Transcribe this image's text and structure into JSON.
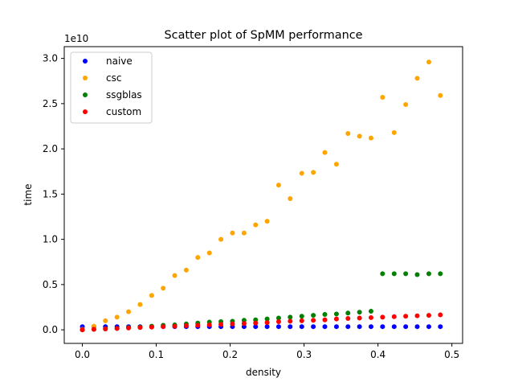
{
  "chart_data": {
    "type": "scatter",
    "title": "Scatter plot of SpMM performance",
    "xlabel": "density",
    "ylabel": "time",
    "y_offset_label": "1e10",
    "y_scale": 10000000000,
    "xlim": [
      -0.0245,
      0.5145
    ],
    "ylim": [
      -1.5,
      31.3
    ],
    "xticks": [
      0.0,
      0.1,
      0.2,
      0.3,
      0.4,
      0.5
    ],
    "xtick_labels": [
      "0.0",
      "0.1",
      "0.2",
      "0.3",
      "0.4",
      "0.5"
    ],
    "yticks": [
      0.0,
      5.0,
      10.0,
      15.0,
      20.0,
      25.0,
      30.0
    ],
    "ytick_labels": [
      "0.0",
      "0.5",
      "1.0",
      "1.5",
      "2.0",
      "2.5",
      "3.0"
    ],
    "legend_position": "upper-left",
    "grid": false,
    "x": [
      0.0,
      0.0156,
      0.0312,
      0.0469,
      0.0625,
      0.0781,
      0.0938,
      0.1094,
      0.125,
      0.1406,
      0.1562,
      0.1719,
      0.1875,
      0.2031,
      0.2188,
      0.2344,
      0.25,
      0.2656,
      0.2812,
      0.2969,
      0.3125,
      0.3281,
      0.3438,
      0.3594,
      0.375,
      0.3906,
      0.4062,
      0.4219,
      0.4375,
      0.4531,
      0.4688,
      0.4844
    ],
    "series": [
      {
        "name": "naive",
        "color": "#0000ff",
        "values": [
          0.35,
          0.35,
          0.35,
          0.35,
          0.35,
          0.35,
          0.35,
          0.35,
          0.35,
          0.35,
          0.35,
          0.35,
          0.35,
          0.35,
          0.35,
          0.35,
          0.35,
          0.35,
          0.35,
          0.35,
          0.35,
          0.35,
          0.35,
          0.35,
          0.35,
          0.35,
          0.35,
          0.35,
          0.35,
          0.35,
          0.35,
          0.35
        ]
      },
      {
        "name": "csc",
        "color": "#ffa500",
        "values": [
          0.05,
          0.4,
          1.0,
          1.4,
          2.0,
          2.8,
          3.8,
          4.6,
          6.0,
          6.6,
          8.0,
          8.5,
          10.0,
          10.7,
          10.7,
          11.6,
          12.0,
          16.0,
          14.5,
          17.3,
          17.4,
          19.6,
          18.3,
          21.7,
          21.4,
          21.2,
          25.7,
          21.8,
          24.9,
          27.8,
          29.6,
          25.9
        ]
      },
      {
        "name": "ssgblas",
        "color": "#008000",
        "values": [
          0.0,
          0.05,
          0.1,
          0.15,
          0.25,
          0.3,
          0.4,
          0.5,
          0.55,
          0.65,
          0.75,
          0.85,
          0.9,
          0.95,
          1.05,
          1.1,
          1.2,
          1.3,
          1.4,
          1.5,
          1.6,
          1.7,
          1.75,
          1.85,
          1.95,
          2.05,
          6.2,
          6.2,
          6.2,
          6.1,
          6.2,
          6.2
        ]
      },
      {
        "name": "custom",
        "color": "#ff0000",
        "values": [
          0.0,
          0.05,
          0.1,
          0.15,
          0.2,
          0.25,
          0.3,
          0.35,
          0.4,
          0.45,
          0.5,
          0.55,
          0.6,
          0.65,
          0.7,
          0.75,
          0.8,
          0.9,
          0.95,
          1.0,
          1.05,
          1.1,
          1.2,
          1.25,
          1.3,
          1.35,
          1.4,
          1.45,
          1.5,
          1.55,
          1.6,
          1.65
        ]
      }
    ]
  }
}
